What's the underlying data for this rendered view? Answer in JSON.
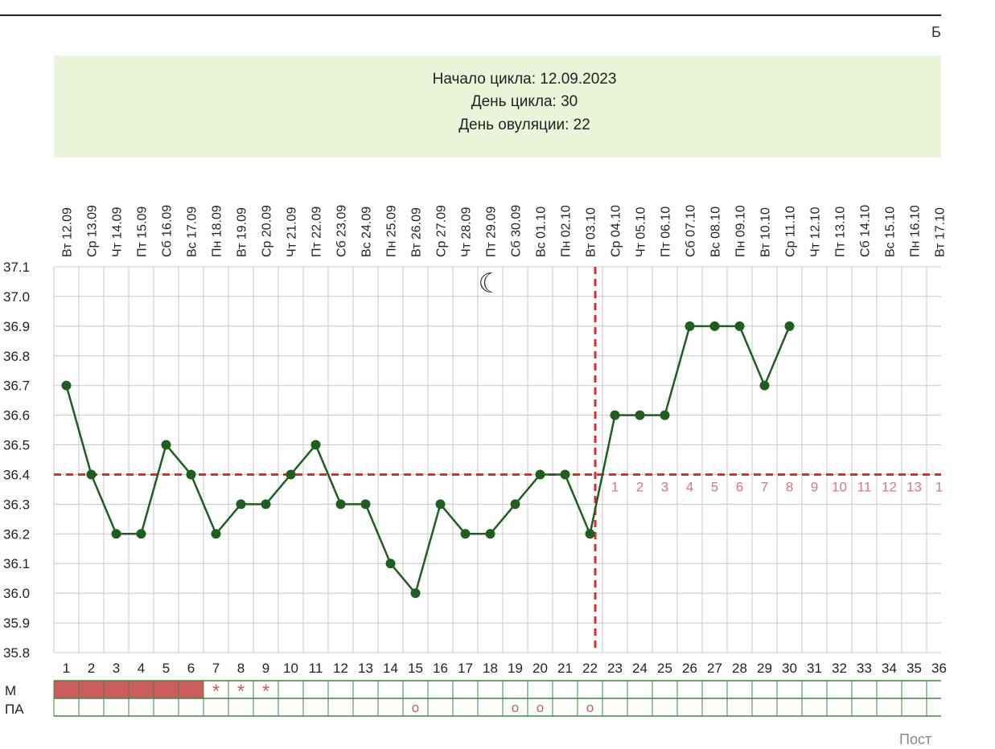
{
  "header": {
    "corner_text": "Б",
    "cycle_start": "Начало цикла: 12.09.2023",
    "cycle_day": "День цикла: 30",
    "ovulation_day": "День овуляции: 22"
  },
  "footer": {
    "text": "Пост"
  },
  "chart_data": {
    "type": "line",
    "ylim": [
      35.8,
      37.1
    ],
    "y_ticks": [
      "37.1",
      "37.0",
      "36.9",
      "36.8",
      "36.7",
      "36.6",
      "36.5",
      "36.4",
      "36.3",
      "36.2",
      "36.1",
      "36.0",
      "35.9",
      "35.8"
    ],
    "day_numbers": [
      "1",
      "2",
      "3",
      "4",
      "5",
      "6",
      "7",
      "8",
      "9",
      "10",
      "11",
      "12",
      "13",
      "14",
      "15",
      "16",
      "17",
      "18",
      "19",
      "20",
      "21",
      "22",
      "23",
      "24",
      "25",
      "26",
      "27",
      "28",
      "29",
      "30",
      "31",
      "32",
      "33",
      "34",
      "35",
      "36"
    ],
    "date_labels": [
      "Вт 12.09",
      "Ср 13.09",
      "Чт 14.09",
      "Пт 15.09",
      "Сб 16.09",
      "Вс 17.09",
      "Пн 18.09",
      "Вт 19.09",
      "Ср 20.09",
      "Чт 21.09",
      "Пт 22.09",
      "Сб 23.09",
      "Вс 24.09",
      "Пн 25.09",
      "Вт 26.09",
      "Ср 27.09",
      "Чт 28.09",
      "Пт 29.09",
      "Сб 30.09",
      "Вс 01.10",
      "Пн 02.10",
      "Вт 03.10",
      "Ср 04.10",
      "Чт 05.10",
      "Пт 06.10",
      "Сб 07.10",
      "Вс 08.10",
      "Пн 09.10",
      "Вт 10.10",
      "Ср 11.10",
      "Чт 12.10",
      "Пт 13.10",
      "Сб 14.10",
      "Вс 15.10",
      "Пн 16.10",
      "Вт 17.10"
    ],
    "series": [
      {
        "values": [
          36.7,
          36.4,
          36.2,
          36.2,
          36.5,
          36.4,
          36.2,
          36.3,
          36.3,
          36.4,
          36.5,
          36.3,
          36.3,
          36.1,
          36.0,
          36.3,
          36.2,
          36.2,
          36.3,
          36.4,
          36.4,
          36.2,
          36.6,
          36.6,
          36.6,
          36.9,
          36.9,
          36.9,
          36.7,
          36.9
        ]
      }
    ],
    "coverline": 36.4,
    "ovulation_day": 22,
    "moon_day": 18,
    "post_ovulation_counts": [
      "1",
      "2",
      "3",
      "4",
      "5",
      "6",
      "7",
      "8",
      "9",
      "10",
      "11",
      "12",
      "13",
      "1"
    ],
    "rows": {
      "m_label": "М",
      "pa_label": "ПА",
      "menstruation_days": [
        1,
        2,
        3,
        4,
        5,
        6
      ],
      "spotting_days": [
        7,
        8,
        9
      ],
      "spotting_mark": "*",
      "pa_days": [
        15,
        19,
        20,
        22
      ],
      "pa_mark": "o"
    },
    "moon_symbol": "☾",
    "colors": {
      "line": "#1e5e1e",
      "marker": "#1e5e1e",
      "coverline": "#e32b2b",
      "grid": "#c8c8c8",
      "count_text": "#d9787a",
      "menstruation": "#cd5c5c",
      "row_border": "#3d8a3d",
      "info_bg": "#e9f4d9"
    }
  }
}
